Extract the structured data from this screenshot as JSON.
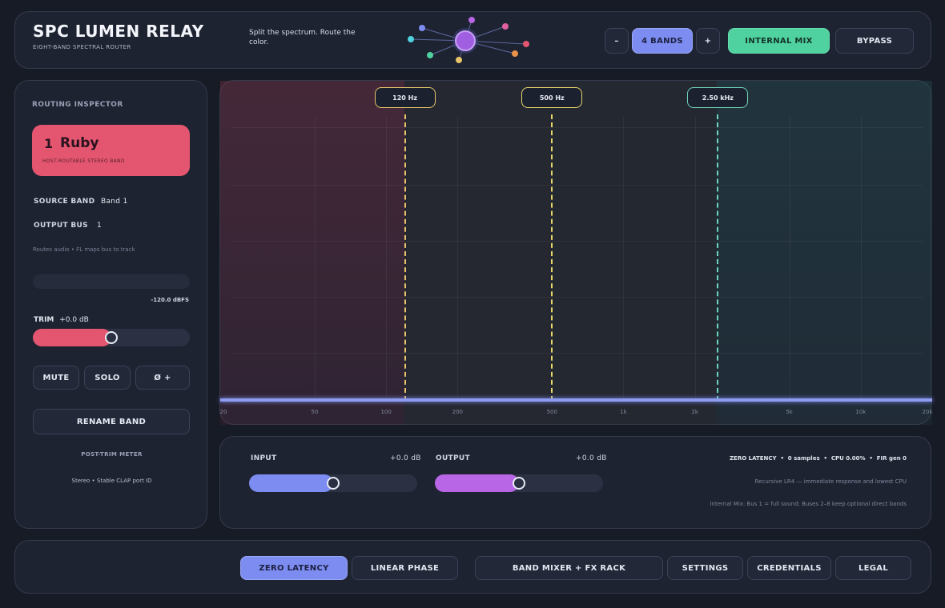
{
  "header": {
    "title": "SPC LUMEN RELAY",
    "subtitle": "EIGHT-BAND SPECTRAL ROUTER",
    "tagline": "Split the spectrum. Route the color.",
    "band_minus": "–",
    "band_count_label": "4 BANDS",
    "band_plus": "+",
    "internal_mix_label": "INTERNAL MIX",
    "bypass_label": "BYPASS"
  },
  "inspector": {
    "heading": "ROUTING INSPECTOR",
    "band_number": "1",
    "band_name": "Ruby",
    "band_desc": "HOST-ROUTABLE STEREO BAND",
    "band_color": "#e4566f",
    "source_label": "SOURCE BAND",
    "source_value": "Band 1",
    "output_label": "OUTPUT BUS",
    "output_value": "1",
    "note": "Routes audio • FL maps bus to track",
    "level_readout": "-120.0 dBFS",
    "trim_label": "TRIM",
    "trim_value": "+0.0 dB",
    "trim_position": 0.5,
    "mute_label": "MUTE",
    "solo_label": "SOLO",
    "phase_label": "Ø +",
    "rename_label": "RENAME BAND",
    "meter_label": "POST-TRIM METER",
    "footer": "Stereo  •  Stable CLAP port ID"
  },
  "spectrum": {
    "crossovers": [
      {
        "label": "120 Hz",
        "color": "#e8c46a"
      },
      {
        "label": "500 Hz",
        "color": "#e8d56a"
      },
      {
        "label": "2.50 kHz",
        "color": "#6fd3b6"
      }
    ],
    "x_ticks": [
      "20",
      "50",
      "100",
      "200",
      "500",
      "1k",
      "2k",
      "5k",
      "10k",
      "20k"
    ],
    "x_tick_values": [
      20,
      50,
      100,
      200,
      500,
      1000,
      2000,
      5000,
      10000,
      20000
    ],
    "crossover_values": [
      120,
      500,
      2500
    ]
  },
  "io": {
    "input_label": "INPUT",
    "input_value": "+0.0 dB",
    "input_position": 0.5,
    "output_label": "OUTPUT",
    "output_value": "+0.0 dB",
    "output_position": 0.5,
    "status_line": "ZERO LATENCY  •  0 samples  •  CPU 0.00%  •  FIR gen 0",
    "mode_note": "Recursive LR4 — immediate response and lowest CPU",
    "mix_note": "Internal Mix: Bus 1 = full sound; Buses 2–8 keep optional direct bands"
  },
  "footer": {
    "zero_latency": "ZERO LATENCY",
    "linear_phase": "LINEAR PHASE",
    "mixer_fx": "BAND MIXER + FX RACK",
    "settings": "SETTINGS",
    "credentials": "CREDENTIALS",
    "legal": "LEGAL"
  },
  "colors": {
    "accent": "#7d8cf0",
    "green": "#4fd1a0",
    "ruby": "#e4566f",
    "violet": "#b866e6"
  }
}
